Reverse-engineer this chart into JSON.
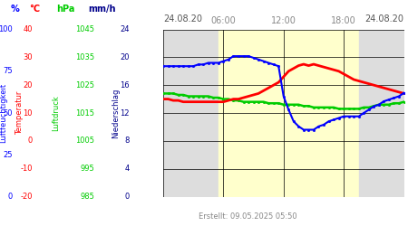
{
  "title_left": "24.08.20",
  "title_right": "24.08.20",
  "footer": "Erstellt: 09.05.2025 05:50",
  "x_tick_labels": [
    "06:00",
    "12:00",
    "18:00"
  ],
  "x_tick_positions": [
    6,
    12,
    18
  ],
  "x_range": [
    0,
    24
  ],
  "background_day": "#ffffcc",
  "background_night": "#dddddd",
  "sunrise_hour": 5.5,
  "sunset_hour": 19.5,
  "hpa_min": 985,
  "hpa_max": 1045,
  "temp_min": -20,
  "temp_max": 40,
  "hum_min": 0,
  "hum_max": 100,
  "mm_min": 0,
  "mm_max": 24,
  "humidity_x": [
    0,
    0.5,
    1,
    1.5,
    2,
    2.5,
    3,
    3.5,
    4,
    4.5,
    5,
    5.5,
    6,
    6.5,
    7,
    7.5,
    8,
    8.5,
    9,
    9.5,
    10,
    10.5,
    11,
    11.5,
    12,
    12.5,
    13,
    13.5,
    14,
    14.5,
    15,
    15.5,
    16,
    16.5,
    17,
    17.5,
    18,
    18.5,
    19,
    19.5,
    20,
    20.5,
    21,
    21.5,
    22,
    22.5,
    23,
    23.5,
    24
  ],
  "humidity_y": [
    78,
    78,
    78,
    78,
    78,
    78,
    78,
    79,
    79,
    80,
    80,
    80,
    81,
    82,
    84,
    84,
    84,
    84,
    83,
    82,
    81,
    80,
    79,
    78,
    60,
    52,
    45,
    42,
    40,
    40,
    40,
    42,
    43,
    45,
    46,
    47,
    48,
    48,
    48,
    48,
    50,
    52,
    54,
    55,
    57,
    58,
    59,
    60,
    62
  ],
  "temperature_x": [
    0,
    0.5,
    1,
    1.5,
    2,
    2.5,
    3,
    3.5,
    4,
    4.5,
    5,
    5.5,
    6,
    6.5,
    7,
    7.5,
    8,
    8.5,
    9,
    9.5,
    10,
    10.5,
    11,
    11.5,
    12,
    12.5,
    13,
    13.5,
    14,
    14.5,
    15,
    15.5,
    16,
    16.5,
    17,
    17.5,
    18,
    18.5,
    19,
    19.5,
    20,
    20.5,
    21,
    21.5,
    22,
    22.5,
    23,
    23.5,
    24
  ],
  "temperature_y": [
    15,
    15,
    14.5,
    14.5,
    14,
    14,
    14,
    14,
    14,
    14,
    14,
    14,
    14,
    14.5,
    15,
    15,
    15.5,
    16,
    16.5,
    17,
    18,
    19,
    20,
    21,
    23,
    25,
    26,
    27,
    27.5,
    27,
    27.5,
    27,
    26.5,
    26,
    25.5,
    25,
    24,
    23,
    22,
    21.5,
    21,
    20.5,
    20,
    19.5,
    19,
    18.5,
    18,
    17.5,
    17
  ],
  "pressure_x": [
    0,
    0.5,
    1,
    1.5,
    2,
    2.5,
    3,
    3.5,
    4,
    4.5,
    5,
    5.5,
    6,
    6.5,
    7,
    7.5,
    8,
    8.5,
    9,
    9.5,
    10,
    10.5,
    11,
    11.5,
    12,
    12.5,
    13,
    13.5,
    14,
    14.5,
    15,
    15.5,
    16,
    16.5,
    17,
    17.5,
    18,
    18.5,
    19,
    19.5,
    20,
    20.5,
    21,
    21.5,
    22,
    22.5,
    23,
    23.5,
    24
  ],
  "pressure_y": [
    1022,
    1022,
    1022,
    1021.5,
    1021.5,
    1021,
    1021,
    1021,
    1021,
    1021,
    1020.5,
    1020.5,
    1020,
    1020,
    1019.5,
    1019.5,
    1019,
    1019,
    1019,
    1019,
    1019,
    1018.5,
    1018.5,
    1018.5,
    1018,
    1018,
    1018,
    1018,
    1017.5,
    1017.5,
    1017,
    1017,
    1017,
    1017,
    1017,
    1016.5,
    1016.5,
    1016.5,
    1016.5,
    1016.5,
    1017,
    1017,
    1017.5,
    1018,
    1018,
    1018,
    1018.5,
    1018.5,
    1019
  ]
}
